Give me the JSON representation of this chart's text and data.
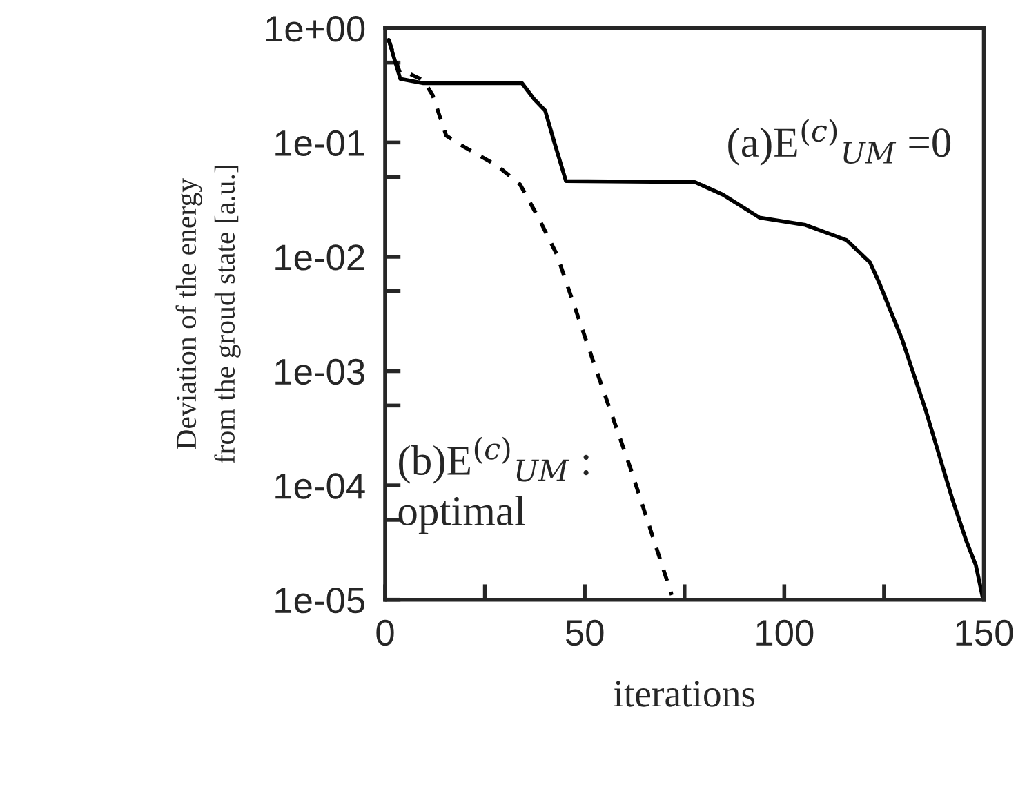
{
  "chart_data": {
    "type": "line",
    "xlabel": "iterations",
    "ylabel": "Deviation of the energy\nfrom the groud state [a.u.]",
    "log": "y",
    "xlim": [
      0,
      150
    ],
    "ylim": [
      1e-05,
      1
    ],
    "xticks": [
      0,
      {
        "value": 25,
        "label": null
      },
      50,
      {
        "value": 75,
        "label": null
      },
      100,
      {
        "value": 125,
        "label": null
      },
      150
    ],
    "yticks": [
      {
        "value": 1e-05,
        "label": "1e-05"
      },
      {
        "value": 5e-05,
        "label": null
      },
      {
        "value": 0.0001,
        "label": "1e-04"
      },
      {
        "value": 0.0005,
        "label": null
      },
      {
        "value": 0.001,
        "label": "1e-03"
      },
      {
        "value": 0.005,
        "label": null
      },
      {
        "value": 0.01,
        "label": "1e-02"
      },
      {
        "value": 0.05,
        "label": null
      },
      {
        "value": 0.1,
        "label": "1e-01"
      },
      {
        "value": 0.5,
        "label": null
      },
      {
        "value": 1,
        "label": "1e+00"
      }
    ],
    "grid": false,
    "legend": false,
    "annotations": [
      "(a)E$^{(c)}$$_{UM}$ =0",
      "(b)E$^{(c)}$$_{UM}$ :\noptimal"
    ],
    "series": [
      {
        "color": "#000000",
        "line_style": "solid",
        "x": [
          0.9,
          3.8,
          9.6,
          34.3,
          37.3,
          40.1,
          42.4,
          45.3,
          77.6,
          84.6,
          93.8,
          105.3,
          115.6,
          121.5,
          123.8,
          129.5,
          135.3,
          142.2,
          145.7,
          148,
          149.7
        ],
        "values": [
          0.79,
          0.36,
          0.33,
          0.33,
          0.24,
          0.19,
          0.1,
          0.046,
          0.045,
          0.035,
          0.022,
          0.019,
          0.014,
          0.0089,
          0.0059,
          0.0019,
          0.00047,
          7.4e-05,
          3.2e-05,
          2e-05,
          1.05e-05
        ]
      },
      {
        "color": "#000000",
        "line_style": "dashed",
        "x": [
          0.9,
          3.8,
          6.1,
          9.6,
          11.9,
          15.3,
          19.9,
          28,
          33.8,
          38.4,
          43,
          52.2,
          61.5,
          71.8
        ],
        "values": [
          0.79,
          0.4,
          0.4,
          0.35,
          0.26,
          0.115,
          0.091,
          0.063,
          0.043,
          0.022,
          0.0105,
          0.0012,
          0.00014,
          1.1e-05
        ]
      }
    ]
  }
}
